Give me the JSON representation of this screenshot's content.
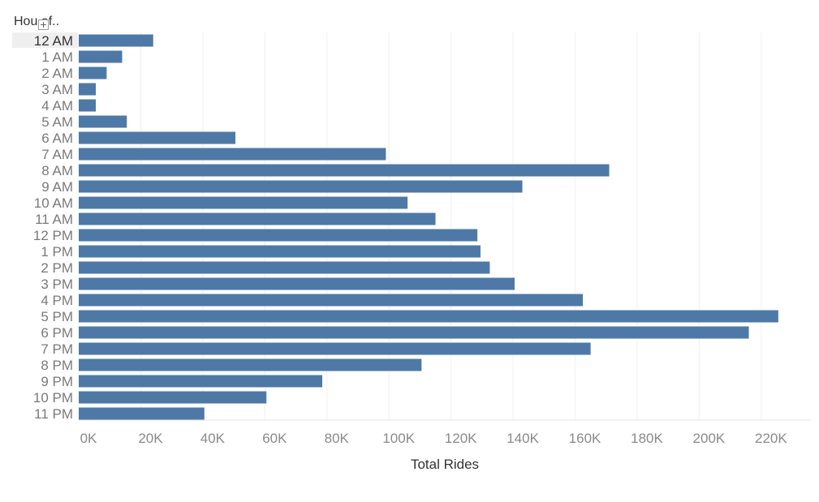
{
  "chart_data": {
    "type": "bar",
    "orientation": "horizontal",
    "title": "",
    "row_header": "Hou of..",
    "xlabel": "Total Rides",
    "ylabel": "",
    "categories": [
      "12 AM",
      "1 AM",
      "2 AM",
      "3 AM",
      "4 AM",
      "5 AM",
      "6 AM",
      "7 AM",
      "8 AM",
      "9 AM",
      "10 AM",
      "11 AM",
      "12 PM",
      "1 PM",
      "2 PM",
      "3 PM",
      "4 PM",
      "5 PM",
      "6 PM",
      "7 PM",
      "8 PM",
      "9 PM",
      "10 PM",
      "11 PM"
    ],
    "values": [
      24000,
      14000,
      9000,
      5500,
      5500,
      15500,
      50500,
      99000,
      171000,
      143000,
      106000,
      115000,
      128500,
      129500,
      132500,
      140500,
      162500,
      225500,
      216000,
      165000,
      110500,
      78500,
      60500,
      40500
    ],
    "x_ticks": [
      "0K",
      "20K",
      "40K",
      "60K",
      "80K",
      "100K",
      "120K",
      "140K",
      "160K",
      "180K",
      "200K",
      "220K"
    ],
    "x_tick_values": [
      0,
      20000,
      40000,
      60000,
      80000,
      100000,
      120000,
      140000,
      160000,
      180000,
      200000,
      220000
    ],
    "xlim": [
      0,
      236000
    ],
    "grid": "vertical",
    "legend": "none",
    "bar_color": "#4e79a7",
    "highlighted_row": "12 AM"
  }
}
